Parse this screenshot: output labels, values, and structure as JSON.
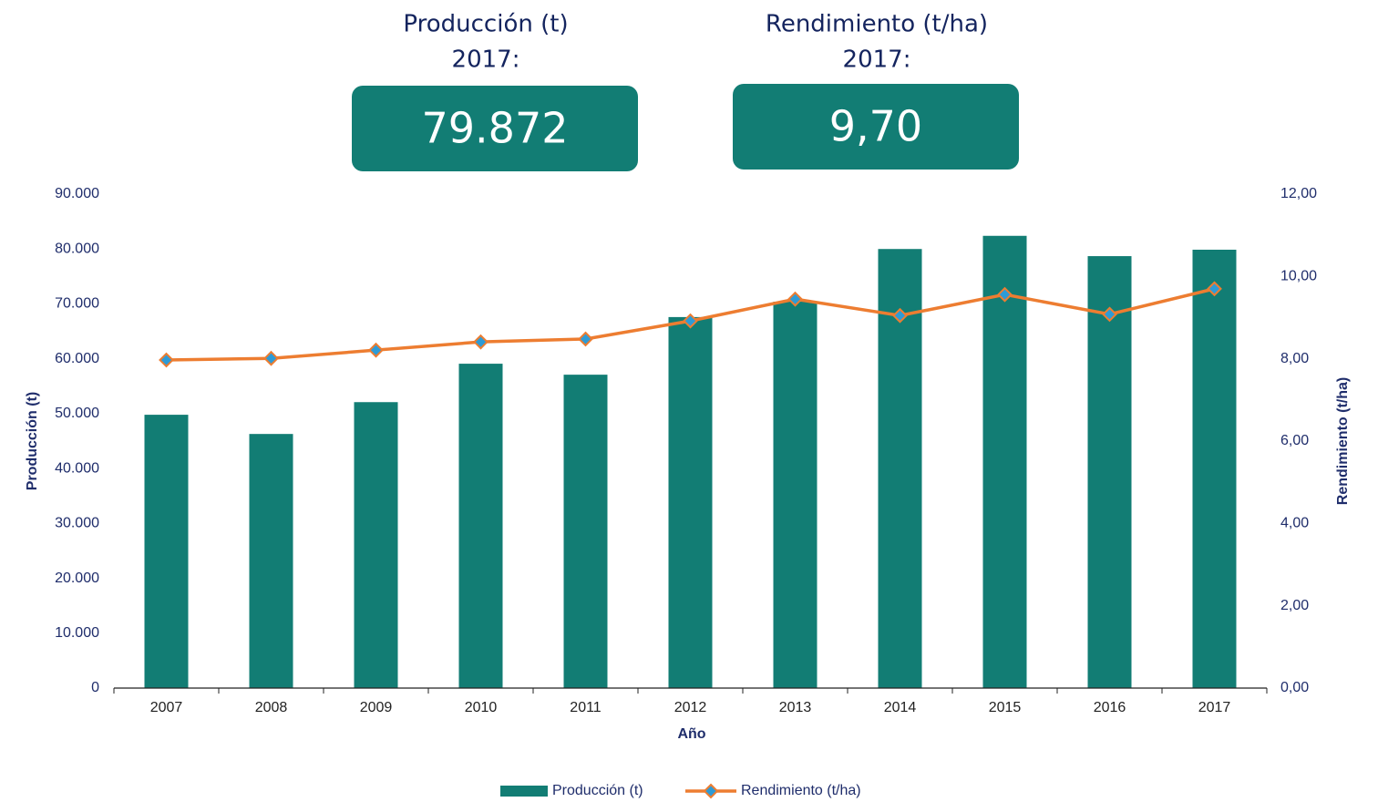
{
  "kpis": [
    {
      "title": "Producción  (t)",
      "year": "2017:",
      "value": "79.872"
    },
    {
      "title": "Rendimiento (t/ha)",
      "year": "2017:",
      "value": "9,70"
    }
  ],
  "chart_data": {
    "type": "combo",
    "categories": [
      "2007",
      "2008",
      "2009",
      "2010",
      "2011",
      "2012",
      "2013",
      "2014",
      "2015",
      "2016",
      "2017"
    ],
    "series": [
      {
        "name": "Producción (t)",
        "type": "bar",
        "color": "#127d74",
        "values": [
          49800,
          46300,
          52100,
          59100,
          57100,
          67600,
          70400,
          80000,
          82400,
          78700,
          79872
        ]
      },
      {
        "name": "Rendimiento (t/ha)",
        "type": "line",
        "axis": "y2",
        "color": "#ed7d31",
        "marker_color": "#2e9bd6",
        "values": [
          7.97,
          8.01,
          8.21,
          8.41,
          8.48,
          8.92,
          9.45,
          9.05,
          9.56,
          9.08,
          9.7
        ]
      }
    ],
    "xlabel": "Año",
    "ylabel": "Producción (t)",
    "y2label": "Rendimiento (t/ha)",
    "ylim": [
      0,
      90000
    ],
    "yticks": [
      0,
      {
        "value": 10000,
        "label": "10.000"
      },
      {
        "value": 20000,
        "label": "20.000"
      },
      {
        "value": 30000,
        "label": "30.000"
      },
      {
        "value": 40000,
        "label": "40.000"
      },
      {
        "value": 50000,
        "label": "50.000"
      },
      {
        "value": 60000,
        "label": "60.000"
      },
      {
        "value": 70000,
        "label": "70.000"
      },
      {
        "value": 80000,
        "label": "80.000"
      },
      {
        "value": 90000,
        "label": "90.000"
      }
    ],
    "y2lim": [
      0,
      12
    ],
    "y2ticks": [
      {
        "value": 0,
        "label": "0,00"
      },
      {
        "value": 2,
        "label": "2,00"
      },
      {
        "value": 4,
        "label": "4,00"
      },
      {
        "value": 6,
        "label": "6,00"
      },
      {
        "value": 8,
        "label": "8,00"
      },
      {
        "value": 10,
        "label": "10,00"
      },
      {
        "value": 12,
        "label": "12,00"
      }
    ],
    "grid": false,
    "legend": "bottom"
  }
}
